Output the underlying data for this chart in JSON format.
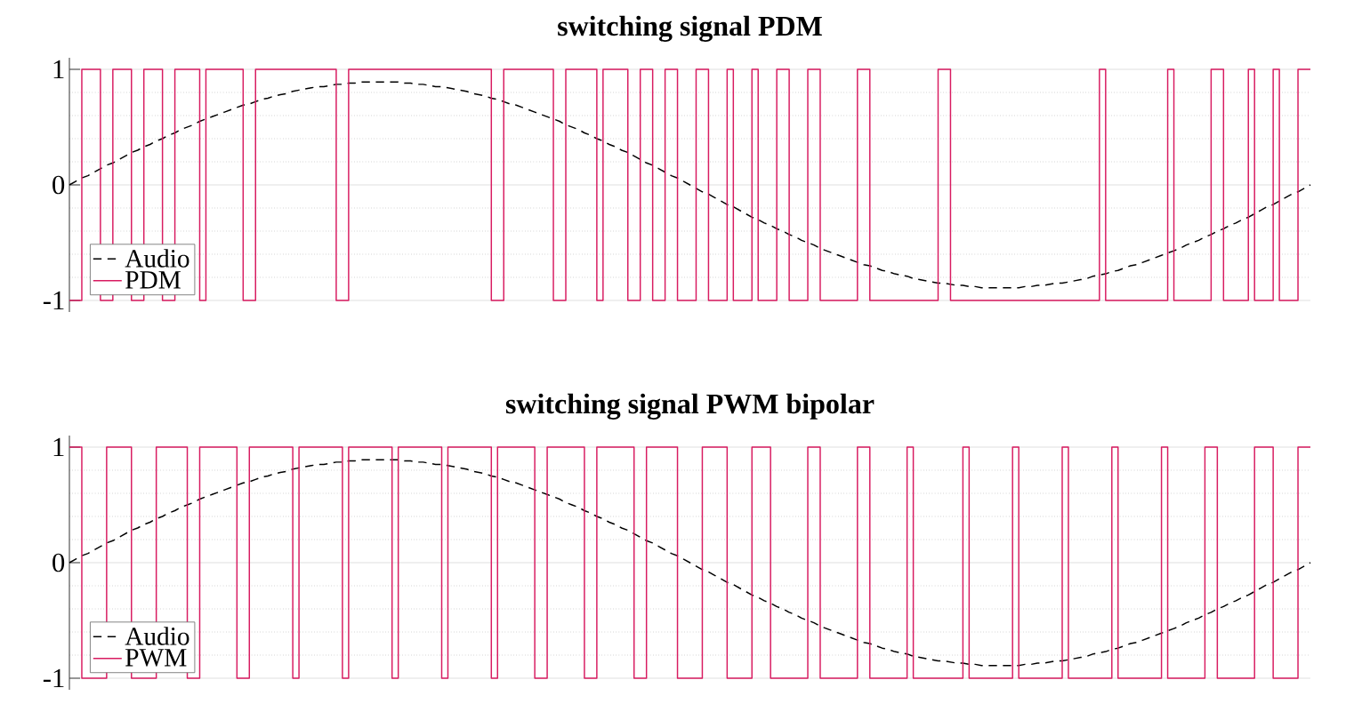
{
  "chart_data": [
    {
      "type": "line",
      "title": "switching signal PDM",
      "categories": [
        null,
        null,
        null,
        null,
        null,
        null,
        null,
        null,
        null,
        null,
        null,
        null,
        null,
        null,
        null,
        null,
        null,
        null,
        null,
        null,
        null,
        null,
        null,
        null,
        null,
        null,
        null,
        null,
        null,
        null,
        null,
        null,
        null,
        null,
        null,
        null,
        null,
        null,
        null,
        null,
        null,
        null,
        null,
        null,
        null,
        null,
        null,
        null,
        null,
        null,
        null,
        null,
        null,
        null,
        null,
        null,
        null,
        null,
        null,
        null,
        null,
        null,
        null,
        null,
        null,
        null,
        null,
        null,
        null,
        null,
        null,
        null,
        null,
        null,
        null,
        null,
        null,
        null,
        null,
        null,
        null,
        null,
        null,
        null,
        null,
        null,
        null,
        null,
        null,
        null,
        null,
        null,
        null,
        null,
        null,
        null,
        null,
        null,
        null,
        null,
        null,
        null,
        null,
        null,
        null,
        null,
        null,
        null,
        null,
        null,
        null,
        null,
        null,
        null,
        null,
        null,
        null,
        null,
        null,
        null,
        null,
        null,
        null,
        null,
        null,
        null,
        null,
        null,
        null,
        null,
        null,
        null,
        null,
        null,
        null,
        null,
        null,
        null,
        null,
        null,
        null,
        null,
        null,
        null,
        null,
        null,
        null,
        null,
        null,
        null,
        null,
        null,
        null,
        null,
        null,
        null,
        null,
        null,
        null,
        null,
        null,
        null,
        null,
        null,
        null,
        null,
        null,
        null,
        null,
        null,
        null,
        null,
        null,
        null,
        null,
        null,
        null,
        null,
        null,
        null,
        null,
        null,
        null,
        null,
        null,
        null,
        null,
        null,
        null,
        null,
        null,
        null,
        null,
        null,
        null,
        null,
        null,
        null,
        null,
        null,
        null
      ],
      "ylim": [
        -1.1,
        1.1
      ],
      "yticks": [
        -1,
        0,
        1
      ],
      "grid": true,
      "legend": "bottom left",
      "series": [
        {
          "name": "Audio",
          "line_style": "dashed",
          "color": "#000000",
          "values": [
            0,
            0.03,
            0.06,
            0.08,
            0.11,
            0.14,
            0.17,
            0.19,
            0.22,
            0.25,
            0.28,
            0.3,
            0.33,
            0.35,
            0.38,
            0.4,
            0.43,
            0.45,
            0.48,
            0.5,
            0.52,
            0.55,
            0.57,
            0.59,
            0.61,
            0.63,
            0.65,
            0.67,
            0.69,
            0.7,
            0.72,
            0.74,
            0.75,
            0.77,
            0.78,
            0.79,
            0.81,
            0.82,
            0.83,
            0.84,
            0.85,
            0.85,
            0.86,
            0.87,
            0.87,
            0.88,
            0.88,
            0.89,
            0.89,
            0.89,
            0.89,
            0.89,
            0.89,
            0.89,
            0.88,
            0.88,
            0.87,
            0.87,
            0.86,
            0.85,
            0.85,
            0.84,
            0.83,
            0.82,
            0.81,
            0.79,
            0.78,
            0.77,
            0.75,
            0.74,
            0.72,
            0.7,
            0.69,
            0.67,
            0.65,
            0.63,
            0.61,
            0.59,
            0.57,
            0.55,
            0.52,
            0.5,
            0.48,
            0.45,
            0.43,
            0.4,
            0.38,
            0.35,
            0.33,
            0.3,
            0.28,
            0.25,
            0.22,
            0.19,
            0.17,
            0.14,
            0.11,
            0.08,
            0.06,
            0.03,
            0,
            -0.03,
            -0.06,
            -0.08,
            -0.11,
            -0.14,
            -0.17,
            -0.19,
            -0.22,
            -0.25,
            -0.28,
            -0.3,
            -0.33,
            -0.35,
            -0.38,
            -0.4,
            -0.43,
            -0.45,
            -0.48,
            -0.5,
            -0.52,
            -0.55,
            -0.57,
            -0.59,
            -0.61,
            -0.63,
            -0.65,
            -0.67,
            -0.69,
            -0.7,
            -0.72,
            -0.74,
            -0.75,
            -0.77,
            -0.78,
            -0.79,
            -0.81,
            -0.82,
            -0.83,
            -0.84,
            -0.85,
            -0.85,
            -0.86,
            -0.87,
            -0.87,
            -0.88,
            -0.88,
            -0.89,
            -0.89,
            -0.89,
            -0.89,
            -0.89,
            -0.89,
            -0.89,
            -0.88,
            -0.88,
            -0.87,
            -0.87,
            -0.86,
            -0.85,
            -0.85,
            -0.84,
            -0.83,
            -0.82,
            -0.81,
            -0.79,
            -0.78,
            -0.77,
            -0.75,
            -0.74,
            -0.72,
            -0.7,
            -0.69,
            -0.67,
            -0.65,
            -0.63,
            -0.61,
            -0.59,
            -0.57,
            -0.55,
            -0.52,
            -0.5,
            -0.48,
            -0.45,
            -0.43,
            -0.4,
            -0.38,
            -0.35,
            -0.33,
            -0.3,
            -0.28,
            -0.25,
            -0.22,
            -0.19,
            -0.17,
            -0.14,
            -0.11,
            -0.08,
            -0.06,
            -0.03,
            0
          ]
        },
        {
          "name": "PDM",
          "type": "step",
          "color": "#d81b60",
          "values": [
            -1,
            -1,
            1,
            1,
            1,
            -1,
            -1,
            1,
            1,
            1,
            -1,
            -1,
            1,
            1,
            1,
            -1,
            -1,
            1,
            1,
            1,
            1,
            -1,
            1,
            1,
            1,
            1,
            1,
            1,
            -1,
            -1,
            1,
            1,
            1,
            1,
            1,
            1,
            1,
            1,
            1,
            1,
            1,
            1,
            1,
            -1,
            -1,
            1,
            1,
            1,
            1,
            1,
            1,
            1,
            1,
            1,
            1,
            1,
            1,
            1,
            1,
            1,
            1,
            1,
            1,
            1,
            1,
            1,
            1,
            1,
            -1,
            -1,
            1,
            1,
            1,
            1,
            1,
            1,
            1,
            1,
            -1,
            -1,
            1,
            1,
            1,
            1,
            1,
            -1,
            1,
            1,
            1,
            1,
            -1,
            -1,
            1,
            1,
            -1,
            -1,
            1,
            1,
            -1,
            -1,
            -1,
            1,
            1,
            -1,
            -1,
            -1,
            1,
            -1,
            -1,
            -1,
            1,
            -1,
            -1,
            -1,
            1,
            1,
            -1,
            -1,
            -1,
            1,
            1,
            -1,
            -1,
            -1,
            -1,
            -1,
            -1,
            1,
            1,
            -1,
            -1,
            -1,
            -1,
            -1,
            -1,
            -1,
            -1,
            -1,
            -1,
            -1,
            1,
            1,
            -1,
            -1,
            -1,
            -1,
            -1,
            -1,
            -1,
            -1,
            -1,
            -1,
            -1,
            -1,
            -1,
            -1,
            -1,
            -1,
            -1,
            -1,
            -1,
            -1,
            -1,
            -1,
            -1,
            -1,
            1,
            -1,
            -1,
            -1,
            -1,
            -1,
            -1,
            -1,
            -1,
            -1,
            -1,
            1,
            -1,
            -1,
            -1,
            -1,
            -1,
            -1,
            1,
            1,
            -1,
            -1,
            -1,
            -1,
            1,
            -1,
            -1,
            -1,
            1,
            -1,
            -1,
            -1,
            1,
            1,
            1
          ]
        }
      ]
    },
    {
      "type": "line",
      "title": "switching signal PWM bipolar",
      "categories": [
        null,
        null,
        null,
        null,
        null,
        null,
        null,
        null,
        null,
        null,
        null,
        null,
        null,
        null,
        null,
        null,
        null,
        null,
        null,
        null,
        null,
        null,
        null,
        null,
        null,
        null,
        null,
        null,
        null,
        null,
        null,
        null,
        null,
        null,
        null,
        null,
        null,
        null,
        null,
        null,
        null,
        null,
        null,
        null,
        null,
        null,
        null,
        null,
        null,
        null,
        null,
        null,
        null,
        null,
        null,
        null,
        null,
        null,
        null,
        null,
        null,
        null,
        null,
        null,
        null,
        null,
        null,
        null,
        null,
        null,
        null,
        null,
        null,
        null,
        null,
        null,
        null,
        null,
        null,
        null,
        null,
        null,
        null,
        null,
        null,
        null,
        null,
        null,
        null,
        null,
        null,
        null,
        null,
        null,
        null,
        null,
        null,
        null,
        null,
        null,
        null,
        null,
        null,
        null,
        null,
        null,
        null,
        null,
        null,
        null,
        null,
        null,
        null,
        null,
        null,
        null,
        null,
        null,
        null,
        null,
        null,
        null,
        null,
        null,
        null,
        null,
        null,
        null,
        null,
        null,
        null,
        null,
        null,
        null,
        null,
        null,
        null,
        null,
        null,
        null,
        null,
        null,
        null,
        null,
        null,
        null,
        null,
        null,
        null,
        null,
        null,
        null,
        null,
        null,
        null,
        null,
        null,
        null,
        null,
        null,
        null,
        null,
        null,
        null,
        null,
        null,
        null,
        null,
        null,
        null,
        null,
        null,
        null,
        null,
        null,
        null,
        null,
        null,
        null,
        null,
        null,
        null,
        null,
        null,
        null,
        null,
        null,
        null,
        null,
        null,
        null,
        null,
        null,
        null,
        null,
        null,
        null,
        null,
        null,
        null,
        null
      ],
      "ylim": [
        -1.1,
        1.1
      ],
      "yticks": [
        -1,
        0,
        1
      ],
      "grid": "y",
      "legend": "bottom left",
      "series": [
        {
          "name": "Audio",
          "line_style": "dashed",
          "color": "#000000",
          "values": [
            0,
            0.03,
            0.06,
            0.08,
            0.11,
            0.14,
            0.17,
            0.19,
            0.22,
            0.25,
            0.28,
            0.3,
            0.33,
            0.35,
            0.38,
            0.4,
            0.43,
            0.45,
            0.48,
            0.5,
            0.52,
            0.55,
            0.57,
            0.59,
            0.61,
            0.63,
            0.65,
            0.67,
            0.69,
            0.7,
            0.72,
            0.74,
            0.75,
            0.77,
            0.78,
            0.79,
            0.81,
            0.82,
            0.83,
            0.84,
            0.85,
            0.85,
            0.86,
            0.87,
            0.87,
            0.88,
            0.88,
            0.89,
            0.89,
            0.89,
            0.89,
            0.89,
            0.89,
            0.89,
            0.88,
            0.88,
            0.87,
            0.87,
            0.86,
            0.85,
            0.85,
            0.84,
            0.83,
            0.82,
            0.81,
            0.79,
            0.78,
            0.77,
            0.75,
            0.74,
            0.72,
            0.7,
            0.69,
            0.67,
            0.65,
            0.63,
            0.61,
            0.59,
            0.57,
            0.55,
            0.52,
            0.5,
            0.48,
            0.45,
            0.43,
            0.4,
            0.38,
            0.35,
            0.33,
            0.3,
            0.28,
            0.25,
            0.22,
            0.19,
            0.17,
            0.14,
            0.11,
            0.08,
            0.06,
            0.03,
            0,
            -0.03,
            -0.06,
            -0.08,
            -0.11,
            -0.14,
            -0.17,
            -0.19,
            -0.22,
            -0.25,
            -0.28,
            -0.3,
            -0.33,
            -0.35,
            -0.38,
            -0.4,
            -0.43,
            -0.45,
            -0.48,
            -0.5,
            -0.52,
            -0.55,
            -0.57,
            -0.59,
            -0.61,
            -0.63,
            -0.65,
            -0.67,
            -0.69,
            -0.7,
            -0.72,
            -0.74,
            -0.75,
            -0.77,
            -0.78,
            -0.79,
            -0.81,
            -0.82,
            -0.83,
            -0.84,
            -0.85,
            -0.85,
            -0.86,
            -0.87,
            -0.87,
            -0.88,
            -0.88,
            -0.89,
            -0.89,
            -0.89,
            -0.89,
            -0.89,
            -0.89,
            -0.89,
            -0.88,
            -0.88,
            -0.87,
            -0.87,
            -0.86,
            -0.85,
            -0.85,
            -0.84,
            -0.83,
            -0.82,
            -0.81,
            -0.79,
            -0.78,
            -0.77,
            -0.75,
            -0.74,
            -0.72,
            -0.7,
            -0.69,
            -0.67,
            -0.65,
            -0.63,
            -0.61,
            -0.59,
            -0.57,
            -0.55,
            -0.52,
            -0.5,
            -0.48,
            -0.45,
            -0.43,
            -0.4,
            -0.38,
            -0.35,
            -0.33,
            -0.3,
            -0.28,
            -0.25,
            -0.22,
            -0.19,
            -0.17,
            -0.14,
            -0.11,
            -0.08,
            -0.06,
            -0.03,
            0
          ]
        },
        {
          "name": "PWM",
          "type": "step",
          "color": "#d81b60",
          "values": [
            1,
            1,
            -1,
            -1,
            -1,
            -1,
            1,
            1,
            1,
            1,
            -1,
            -1,
            -1,
            -1,
            1,
            1,
            1,
            1,
            1,
            -1,
            -1,
            1,
            1,
            1,
            1,
            1,
            1,
            -1,
            -1,
            1,
            1,
            1,
            1,
            1,
            1,
            1,
            -1,
            1,
            1,
            1,
            1,
            1,
            1,
            1,
            -1,
            1,
            1,
            1,
            1,
            1,
            1,
            1,
            -1,
            1,
            1,
            1,
            1,
            1,
            1,
            1,
            -1,
            1,
            1,
            1,
            1,
            1,
            1,
            1,
            -1,
            1,
            1,
            1,
            1,
            1,
            1,
            -1,
            -1,
            1,
            1,
            1,
            1,
            1,
            1,
            -1,
            -1,
            1,
            1,
            1,
            1,
            1,
            1,
            -1,
            -1,
            1,
            1,
            1,
            1,
            1,
            -1,
            -1,
            -1,
            -1,
            1,
            1,
            1,
            1,
            -1,
            -1,
            -1,
            -1,
            1,
            1,
            1,
            -1,
            -1,
            -1,
            -1,
            -1,
            -1,
            1,
            1,
            -1,
            -1,
            -1,
            -1,
            -1,
            -1,
            1,
            1,
            -1,
            -1,
            -1,
            -1,
            -1,
            -1,
            1,
            -1,
            -1,
            -1,
            -1,
            -1,
            -1,
            -1,
            -1,
            1,
            -1,
            -1,
            -1,
            -1,
            -1,
            -1,
            -1,
            1,
            -1,
            -1,
            -1,
            -1,
            -1,
            -1,
            -1,
            1,
            -1,
            -1,
            -1,
            -1,
            -1,
            -1,
            -1,
            1,
            -1,
            -1,
            -1,
            -1,
            -1,
            -1,
            -1,
            1,
            -1,
            -1,
            -1,
            -1,
            -1,
            -1,
            1,
            1,
            -1,
            -1,
            -1,
            -1,
            -1,
            -1,
            1,
            1,
            1,
            -1,
            -1,
            -1,
            -1,
            1,
            1,
            1
          ]
        }
      ]
    }
  ]
}
